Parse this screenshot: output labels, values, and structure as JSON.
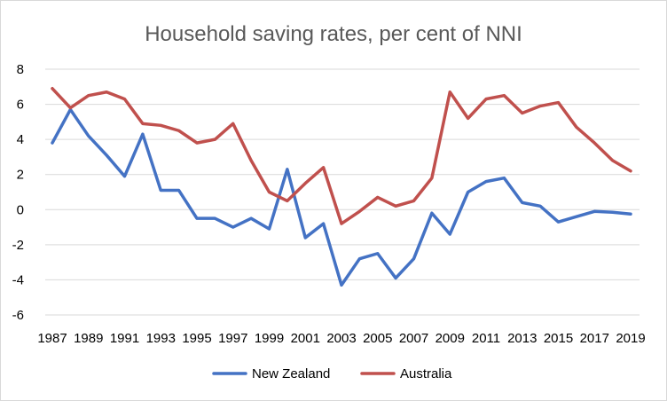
{
  "chart_data": {
    "type": "line",
    "title": "Household saving rates, per cent of NNI",
    "xlabel": "",
    "ylabel": "",
    "ylim": [
      -6,
      8
    ],
    "yticks": [
      -6,
      -4,
      -2,
      0,
      2,
      4,
      6,
      8
    ],
    "grid": true,
    "legend_position": "bottom",
    "x": [
      1987,
      1988,
      1989,
      1990,
      1991,
      1992,
      1993,
      1994,
      1995,
      1996,
      1997,
      1998,
      1999,
      2000,
      2001,
      2002,
      2003,
      2004,
      2005,
      2006,
      2007,
      2008,
      2009,
      2010,
      2011,
      2012,
      2013,
      2014,
      2015,
      2016,
      2017,
      2018,
      2019
    ],
    "x_tick_labels": [
      "1987",
      "1989",
      "1991",
      "1993",
      "1995",
      "1997",
      "1999",
      "2001",
      "2003",
      "2005",
      "2007",
      "2009",
      "2011",
      "2013",
      "2015",
      "2017",
      "2019"
    ],
    "y_tick_labels": [
      "-6",
      "-4",
      "-2",
      "0",
      "2",
      "4",
      "6",
      "8"
    ],
    "series": [
      {
        "name": "New Zealand",
        "color": "#4472c4",
        "values": [
          3.8,
          5.7,
          4.2,
          3.1,
          1.9,
          4.3,
          1.1,
          1.1,
          -0.5,
          -0.5,
          -1.0,
          -0.5,
          -1.1,
          2.3,
          -1.6,
          -0.8,
          -4.3,
          -2.8,
          -2.5,
          -3.9,
          -2.8,
          -0.2,
          -1.4,
          1.0,
          1.6,
          1.8,
          0.4,
          0.2,
          -0.7,
          -0.4,
          -0.1,
          -0.15,
          -0.25
        ]
      },
      {
        "name": "Australia",
        "color": "#c0504d",
        "values": [
          6.9,
          5.8,
          6.5,
          6.7,
          6.3,
          4.9,
          4.8,
          4.5,
          3.8,
          4.0,
          4.9,
          2.8,
          1.0,
          0.5,
          1.5,
          2.4,
          -0.8,
          -0.1,
          0.7,
          0.2,
          0.5,
          1.8,
          6.7,
          5.2,
          6.3,
          6.5,
          5.5,
          5.9,
          6.1,
          4.7,
          3.8,
          2.8,
          2.2
        ]
      }
    ]
  }
}
